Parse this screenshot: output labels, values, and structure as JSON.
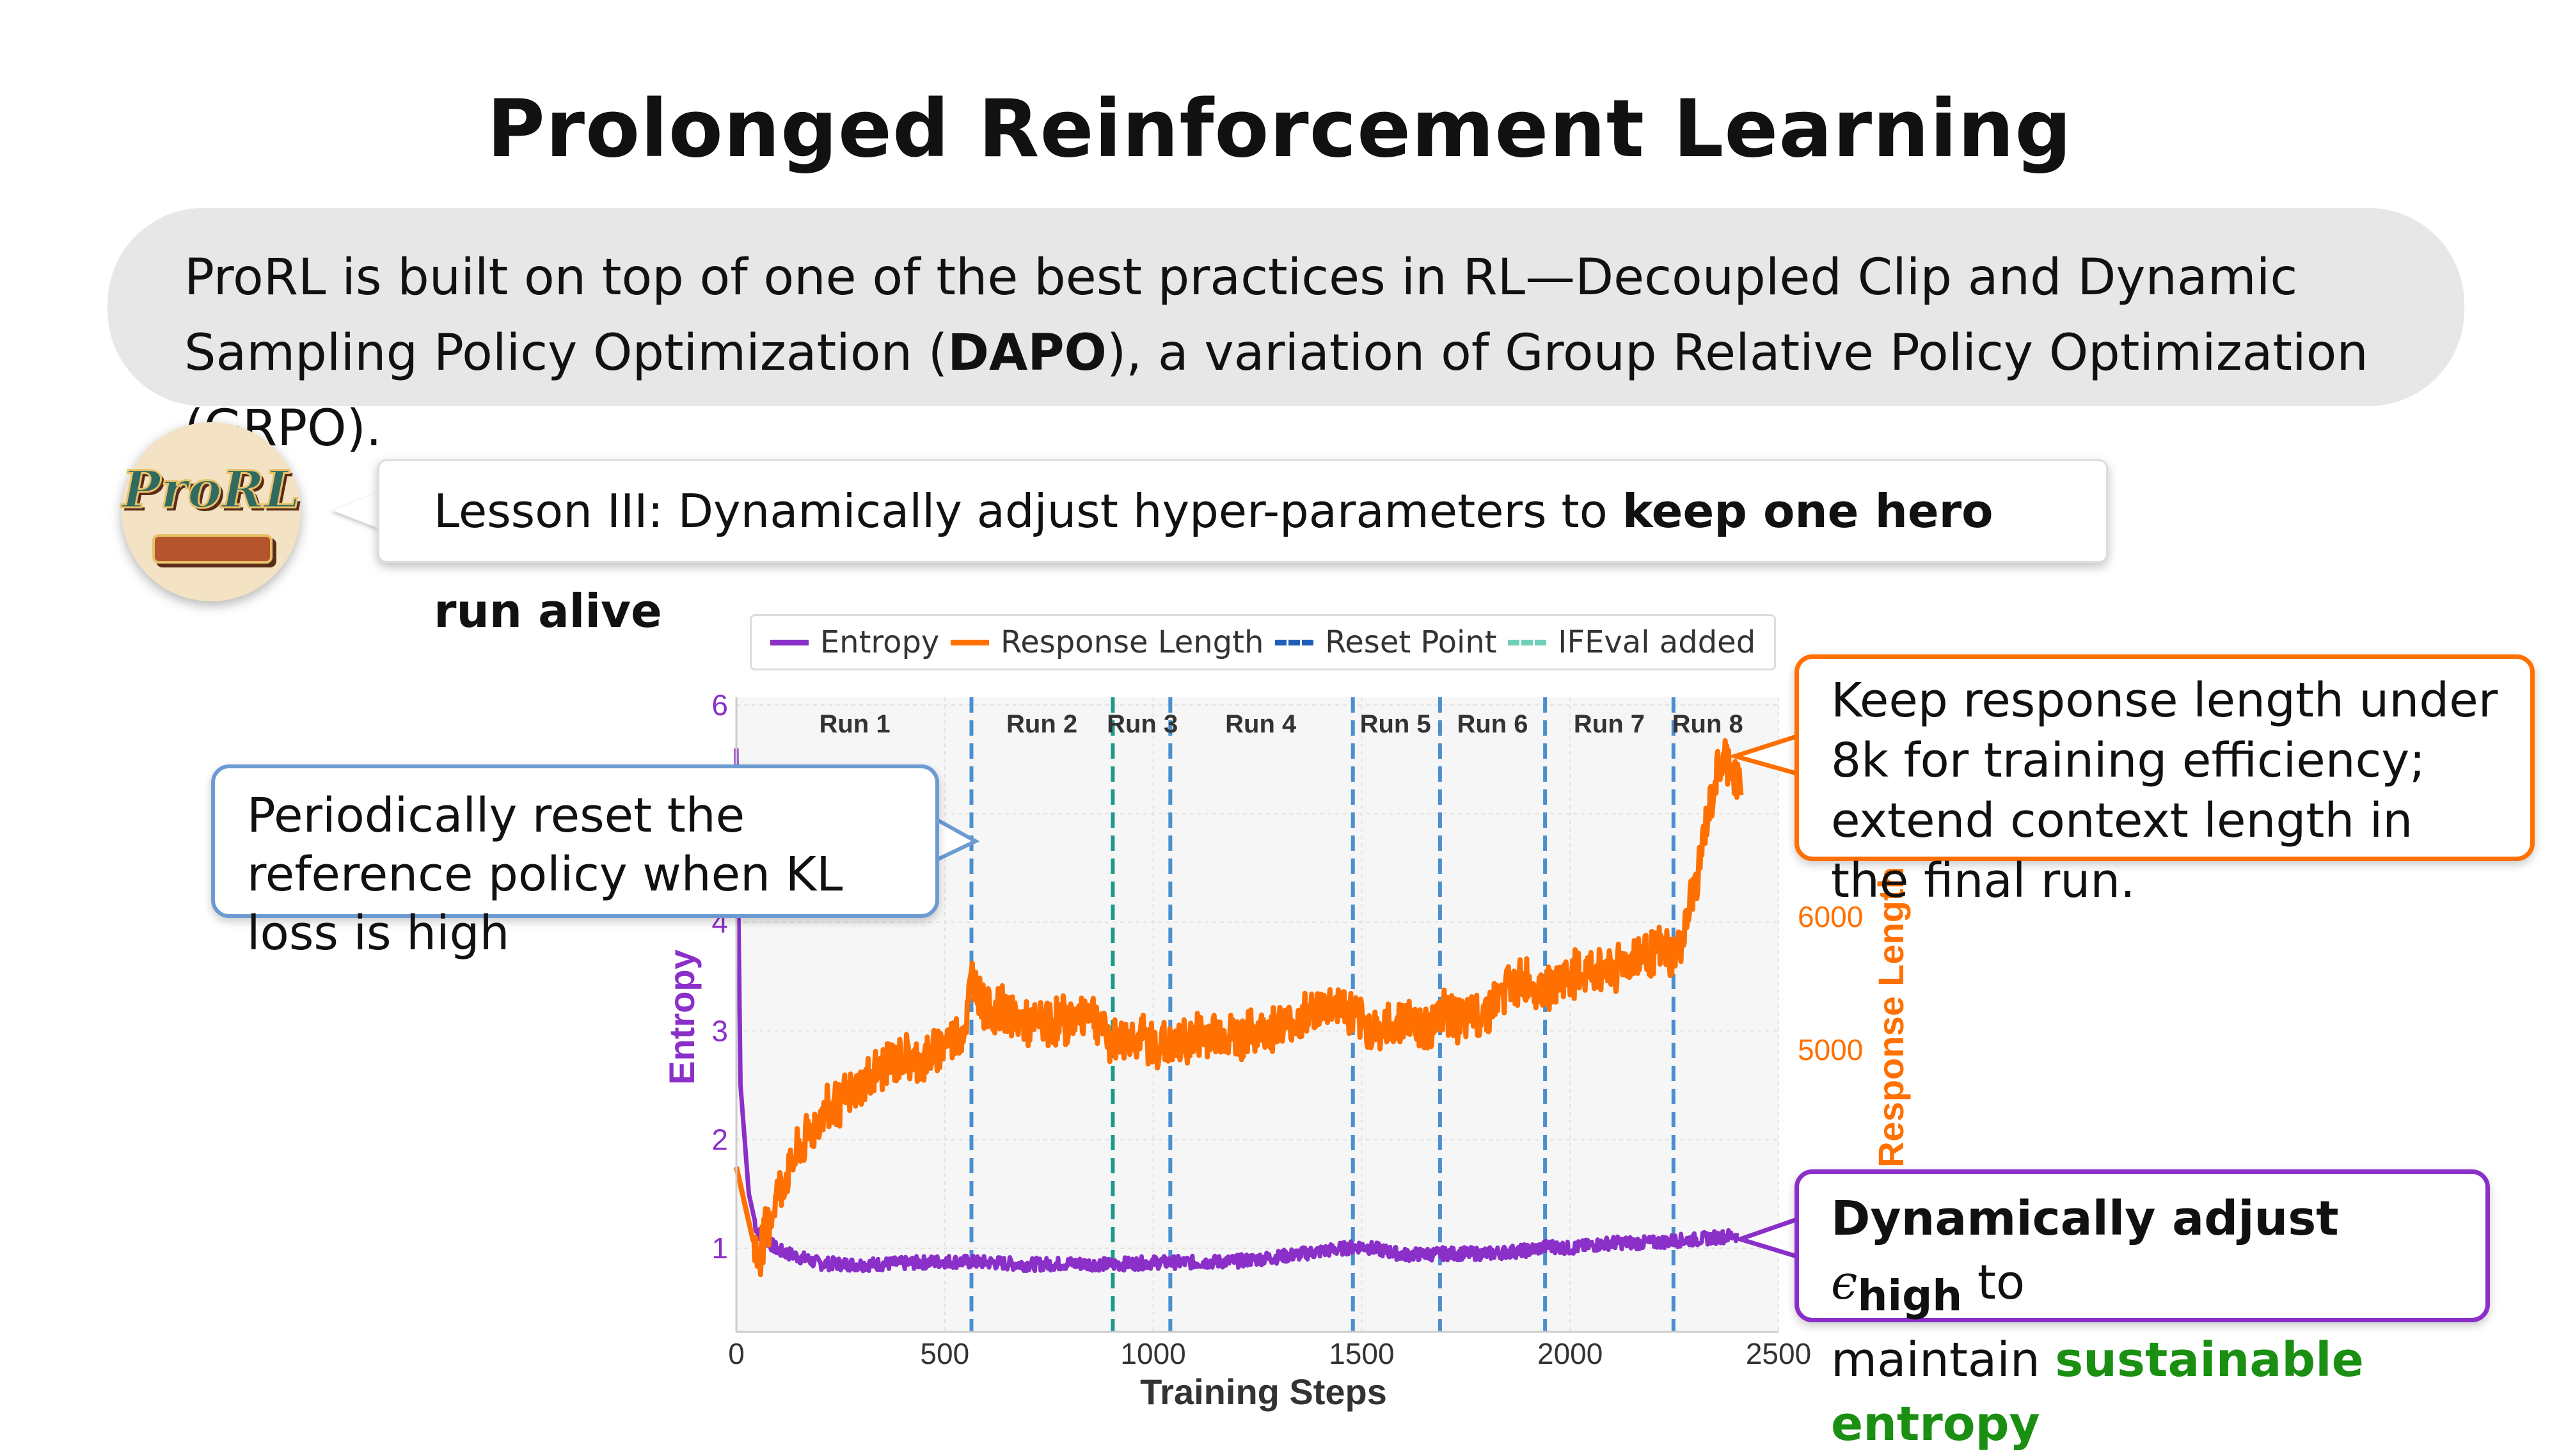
{
  "title": "Prolonged Reinforcement Learning",
  "intro": {
    "text_before": "ProRL is built on top of one of the best practices in RL—Decoupled Clip and Dynamic Sampling Policy Optimization (",
    "bold": "DAPO",
    "text_after": "), a variation of Group Relative Policy Optimization (GRPO)."
  },
  "logo": {
    "text": "ProRL"
  },
  "lesson": {
    "prefix": "Lesson III: Dynamically adjust hyper-parameters to ",
    "bold": "keep one hero run alive"
  },
  "callouts": {
    "left": "Periodically reset the reference policy when KL loss is high",
    "orange": "Keep response length under 8k for training efficiency; extend context length in the final run.",
    "purple_bold": "Dynamically adjust ",
    "purple_eps": "ϵ",
    "purple_sub": "high",
    "purple_after": " to",
    "purple_line2": "maintain ",
    "purple_green": "sustainable entropy"
  },
  "colors": {
    "entropy": "#8b2fc9",
    "response": "#ff7000",
    "reset": "#4a8fd0",
    "ifeval": "#1a9a8a",
    "green": "#1a8f12"
  },
  "chart_data": {
    "type": "line",
    "xlabel": "Training Steps",
    "ylabel_left": "Entropy",
    "ylabel_right": "Response Length",
    "xlim": [
      0,
      2500
    ],
    "ylim_left": [
      0.23,
      6.07
    ],
    "ylim_right": [
      2880,
      7650
    ],
    "x_ticks": [
      "0",
      "500",
      "1000",
      "1500",
      "2000",
      "2500"
    ],
    "y_ticks_left": [
      "1",
      "2",
      "3",
      "4",
      "6"
    ],
    "y_ticks_right": [
      "5000",
      "6000"
    ],
    "grid": true,
    "legend": {
      "position": "top",
      "entries": [
        "Entropy",
        "Response Length",
        "Reset Point",
        "IFEval added"
      ]
    },
    "series": [
      {
        "name": "Entropy",
        "axis": "left",
        "x": [
          0,
          10,
          30,
          50,
          80,
          100,
          200,
          300,
          400,
          500,
          600,
          700,
          800,
          900,
          1000,
          1100,
          1200,
          1300,
          1400,
          1500,
          1600,
          1700,
          1800,
          1900,
          1950,
          2000,
          2100,
          2200,
          2250,
          2300,
          2400
        ],
        "y": [
          5.6,
          2.5,
          1.5,
          1.15,
          1.05,
          0.98,
          0.86,
          0.85,
          0.86,
          0.88,
          0.87,
          0.85,
          0.86,
          0.85,
          0.87,
          0.87,
          0.88,
          0.92,
          0.97,
          1.02,
          0.94,
          0.95,
          0.95,
          0.98,
          1.02,
          1.0,
          1.05,
          1.05,
          1.07,
          1.08,
          1.12
        ]
      },
      {
        "name": "Response Length",
        "axis": "right",
        "x": [
          0,
          50,
          100,
          150,
          200,
          250,
          300,
          350,
          400,
          450,
          500,
          550,
          565,
          600,
          650,
          700,
          750,
          800,
          850,
          900,
          950,
          1000,
          1050,
          1100,
          1150,
          1200,
          1250,
          1300,
          1350,
          1400,
          1450,
          1500,
          1550,
          1600,
          1650,
          1700,
          1750,
          1800,
          1850,
          1900,
          1950,
          2000,
          2050,
          2100,
          2150,
          2200,
          2250,
          2275,
          2300,
          2325,
          2350,
          2375,
          2400,
          2410
        ],
        "y": [
          4120,
          3430,
          3920,
          4240,
          4490,
          4610,
          4730,
          4860,
          4940,
          4900,
          5060,
          5180,
          5550,
          5310,
          5270,
          5180,
          5220,
          5220,
          5310,
          5060,
          5100,
          5060,
          5020,
          5100,
          5140,
          5100,
          5140,
          5180,
          5220,
          5310,
          5350,
          5180,
          5140,
          5220,
          5180,
          5270,
          5220,
          5310,
          5470,
          5510,
          5470,
          5550,
          5590,
          5630,
          5670,
          5760,
          5710,
          5880,
          6240,
          6650,
          7060,
          7180,
          7020,
          7000
        ]
      }
    ],
    "reset_points": [
      564,
      1041,
      1479,
      1688,
      1940,
      2248
    ],
    "ifeval_added": [
      903
    ],
    "runs": [
      {
        "label": "Run 1",
        "x": 284
      },
      {
        "label": "Run 2",
        "x": 733
      },
      {
        "label": "Run 3",
        "x": 974
      },
      {
        "label": "Run 4",
        "x": 1258
      },
      {
        "label": "Run 5",
        "x": 1581
      },
      {
        "label": "Run 6",
        "x": 1814
      },
      {
        "label": "Run 7",
        "x": 2094
      },
      {
        "label": "Run 8",
        "x": 2330
      }
    ]
  }
}
